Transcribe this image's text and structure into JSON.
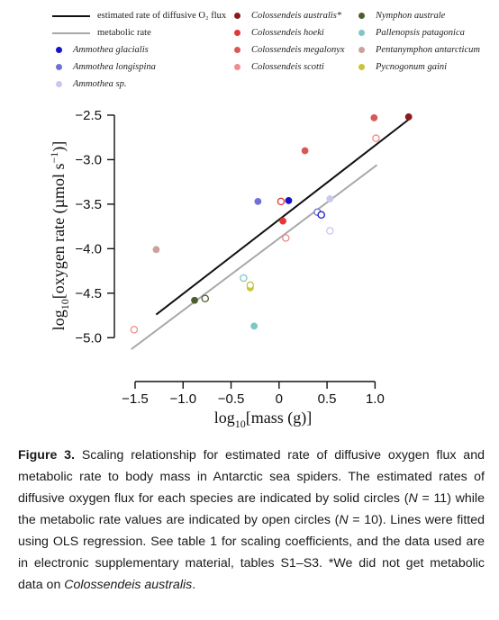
{
  "legend": {
    "col1": [
      {
        "kind": "line",
        "color": "#111111",
        "label": "estimated rate of diffusive O₂ flux",
        "italic": false
      },
      {
        "kind": "line",
        "color": "#a9a9a9",
        "label": "metabolic rate",
        "italic": false
      },
      {
        "kind": "dot",
        "color": "#1515c8",
        "label": "Ammothea glacialis",
        "italic": true
      },
      {
        "kind": "dot",
        "color": "#7070d8",
        "label": "Ammothea longispina",
        "italic": true
      },
      {
        "kind": "dot",
        "color": "#c8c8f0",
        "label": "Ammothea sp.",
        "italic": true
      }
    ],
    "col2": [
      {
        "kind": "dot",
        "color": "#8b1a1a",
        "label": "Colossendeis australis*",
        "italic": true
      },
      {
        "kind": "dot",
        "color": "#e23838",
        "label": "Colossendeis hoeki",
        "italic": true
      },
      {
        "kind": "dot",
        "color": "#d85858",
        "label": "Colossendeis megalonyx",
        "italic": true
      },
      {
        "kind": "dot",
        "color": "#ef8c8c",
        "label": "Colossendeis scotti",
        "italic": true
      }
    ],
    "col3": [
      {
        "kind": "dot",
        "color": "#4d5e2f",
        "label": "Nymphon australe",
        "italic": true
      },
      {
        "kind": "dot",
        "color": "#7fc6c6",
        "label": "Pallenopsis patagonica",
        "italic": true
      },
      {
        "kind": "dot",
        "color": "#c9a29e",
        "label": "Pentanymphon antarcticum",
        "italic": true
      },
      {
        "kind": "dot",
        "color": "#c9c43a",
        "label": "Pycnogonum gaini",
        "italic": true
      }
    ]
  },
  "chart_data": {
    "type": "scatter",
    "xlabel_main": "log",
    "xlabel_sub": "10",
    "xlabel_rest": "[mass (g)]",
    "ylabel_main": "log",
    "ylabel_sub": "10",
    "ylabel_rest": "[oxygen rate (µmol s",
    "ylabel_sup": "−1",
    "ylabel_end": ")]",
    "xlim": [
      -1.65,
      1.4
    ],
    "ylim": [
      -5.25,
      -2.45
    ],
    "xticks": [
      -1.5,
      -1.0,
      -0.5,
      0,
      0.5,
      1.0
    ],
    "xtick_labels": [
      "−1.5",
      "−1.0",
      "−0.5",
      "0",
      "0.5",
      "1.0"
    ],
    "yticks": [
      -2.5,
      -3.0,
      -3.5,
      -4.0,
      -4.5,
      -5.0
    ],
    "ytick_labels": [
      "−2.5",
      "−3.0",
      "−3.5",
      "−4.0",
      "−4.5",
      "−5.0"
    ],
    "series": [
      {
        "name": "estimated rate of diffusive O₂ flux",
        "marker": "filled",
        "points": [
          {
            "x": 1.35,
            "y": -2.52,
            "color": "#8b1a1a"
          },
          {
            "x": 0.99,
            "y": -2.53,
            "color": "#d85858"
          },
          {
            "x": 0.27,
            "y": -2.9,
            "color": "#d85858"
          },
          {
            "x": 0.1,
            "y": -3.46,
            "color": "#1515c8"
          },
          {
            "x": 0.04,
            "y": -3.69,
            "color": "#e23838"
          },
          {
            "x": -0.22,
            "y": -3.47,
            "color": "#7070d8"
          },
          {
            "x": 0.53,
            "y": -3.44,
            "color": "#c8c8f0"
          },
          {
            "x": -1.28,
            "y": -4.01,
            "color": "#c9a29e"
          },
          {
            "x": -0.88,
            "y": -4.58,
            "color": "#4d5e2f"
          },
          {
            "x": -0.3,
            "y": -4.44,
            "color": "#c9c43a"
          },
          {
            "x": -0.26,
            "y": -4.87,
            "color": "#7fc6c6"
          }
        ]
      },
      {
        "name": "metabolic rate",
        "marker": "open",
        "points": [
          {
            "x": 1.01,
            "y": -2.76,
            "color": "#ef8c8c"
          },
          {
            "x": 0.02,
            "y": -3.47,
            "color": "#e23838"
          },
          {
            "x": 0.07,
            "y": -3.88,
            "color": "#ef8c8c"
          },
          {
            "x": 0.4,
            "y": -3.59,
            "color": "#7070d8"
          },
          {
            "x": 0.44,
            "y": -3.62,
            "color": "#1515c8"
          },
          {
            "x": 0.53,
            "y": -3.8,
            "color": "#c8c8f0"
          },
          {
            "x": -0.77,
            "y": -4.56,
            "color": "#4d5e2f"
          },
          {
            "x": -0.37,
            "y": -4.33,
            "color": "#7fc6c6"
          },
          {
            "x": -0.3,
            "y": -4.41,
            "color": "#c9c43a"
          },
          {
            "x": -1.51,
            "y": -4.91,
            "color": "#ef8c8c"
          }
        ]
      }
    ],
    "fit_lines": [
      {
        "name": "estimated rate of diffusive O₂ flux",
        "color": "#111111",
        "x": [
          -1.28,
          1.35
        ],
        "y": [
          -4.74,
          -2.55
        ]
      },
      {
        "name": "metabolic rate",
        "color": "#a9a9a9",
        "x": [
          -1.54,
          1.02
        ],
        "y": [
          -5.13,
          -3.06
        ]
      }
    ]
  },
  "caption": {
    "label": "Figure 3.",
    "text_a": " Scaling relationship for estimated rate of diffusive oxygen flux and metabolic rate to body mass in Antarctic sea spiders. The estimated rates of diffusive oxygen flux for each species are indicated by solid circles (",
    "n1_var": "N",
    "n1_rest": " = 11) while the metabolic rate values are indicated by open circles (",
    "n2_var": "N",
    "n2_rest": " = 10). Lines were fitted using OLS regression. See table 1 for scaling coefficients, and the data used are in electronic supplementary material, tables S1–S3. *We did not get metabolic data on ",
    "species": "Colossendeis australis",
    "end": "."
  }
}
